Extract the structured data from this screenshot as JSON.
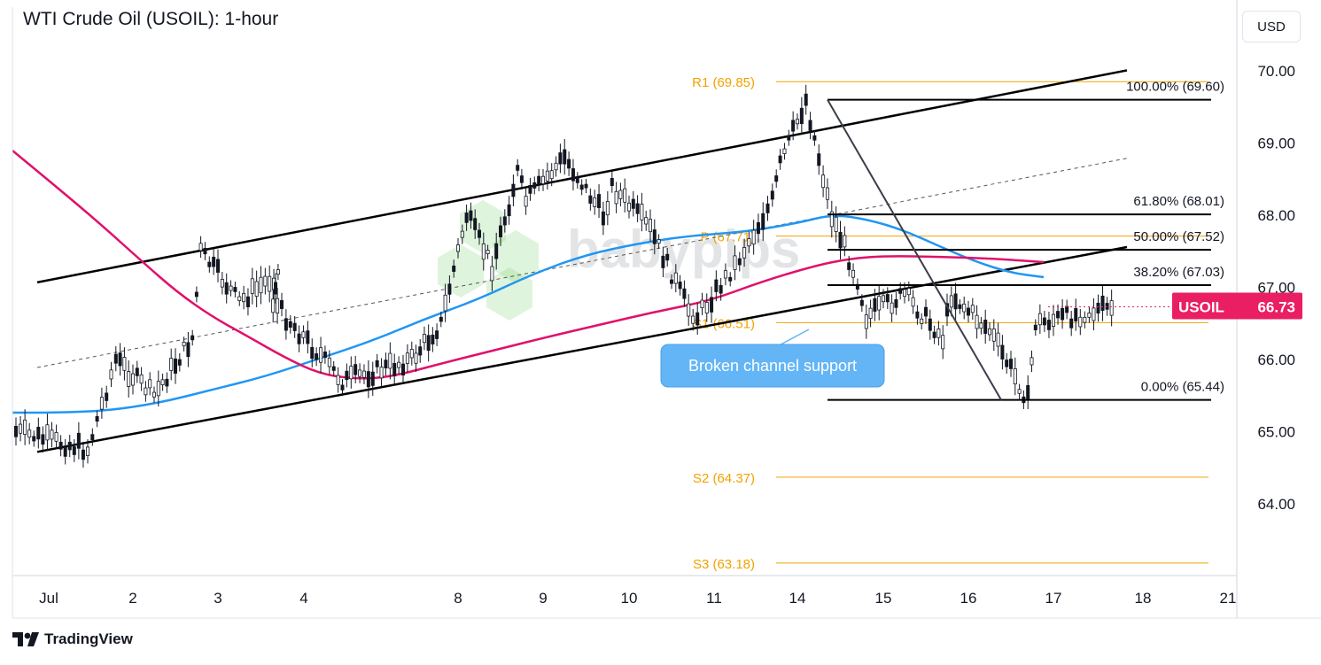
{
  "header": {
    "title": "WTI Crude Oil (USOIL): 1-hour",
    "currency": "USD"
  },
  "footer": {
    "brand": "TradingView"
  },
  "watermark": "babypips",
  "colors": {
    "price_tag": "#e91e63",
    "sma100": "#2196f3",
    "sma200": "#e0116a",
    "pivot": "#f2a200",
    "line": "#000000",
    "callout": "#64b5f6",
    "watermark": "#6ccb5f"
  },
  "chart_data": {
    "type": "candlestick",
    "symbol": "USOIL",
    "current_price": "66.73",
    "y_axis": {
      "ticks": [
        "70.00",
        "69.00",
        "68.00",
        "67.00",
        "66.00",
        "65.00",
        "64.00"
      ],
      "range": [
        62.4,
        70.3
      ]
    },
    "x_axis": {
      "ticks": [
        "Jul",
        "2",
        "3",
        "4",
        "8",
        "9",
        "10",
        "11",
        "14",
        "15",
        "16",
        "17",
        "18",
        "21"
      ]
    },
    "pivots": [
      {
        "label": "R1 (69.85)",
        "value": 69.85
      },
      {
        "label": "P (67.71)",
        "value": 67.71
      },
      {
        "label": "S1 (66.51)",
        "value": 66.51
      },
      {
        "label": "S2 (64.37)",
        "value": 64.37
      },
      {
        "label": "S3 (63.18)",
        "value": 63.18
      }
    ],
    "fibonacci": [
      {
        "label": "100.00% (69.60)",
        "value": 69.6
      },
      {
        "label": "61.80% (68.01)",
        "value": 68.01
      },
      {
        "label": "50.00% (67.52)",
        "value": 67.52
      },
      {
        "label": "38.20% (67.03)",
        "value": 67.03
      },
      {
        "label": "0.00% (65.44)",
        "value": 65.44
      }
    ],
    "annotations": [
      {
        "text": "Broken channel support"
      }
    ],
    "channel": {
      "upper": [
        [
          "Jul",
          67.1
        ],
        [
          "18",
          70.05
        ]
      ],
      "lower": [
        [
          "Jul",
          64.75
        ],
        [
          "18",
          67.6
        ]
      ],
      "mid": [
        [
          "Jul",
          65.92
        ],
        [
          "18",
          68.83
        ]
      ]
    },
    "price_path": [
      [
        "Jul",
        65.0
      ],
      [
        "Jul",
        64.75
      ],
      [
        "2",
        66.0
      ],
      [
        "2",
        65.5
      ],
      [
        "2",
        66.3
      ],
      [
        "3",
        67.5
      ],
      [
        "3",
        66.8
      ],
      [
        "3",
        67.2
      ],
      [
        "4",
        66.8
      ],
      [
        "4",
        65.7
      ],
      [
        "4",
        66.0
      ],
      [
        "8",
        66.5
      ],
      [
        "8",
        68.0
      ],
      [
        "8",
        67.3
      ],
      [
        "8",
        68.6
      ],
      [
        "9",
        68.2
      ],
      [
        "9",
        68.8
      ],
      [
        "9",
        68.0
      ],
      [
        "10",
        68.4
      ],
      [
        "10",
        67.8
      ],
      [
        "10",
        66.7
      ],
      [
        "11",
        66.6
      ],
      [
        "11",
        67.3
      ],
      [
        "11",
        68.2
      ],
      [
        "14",
        68.7
      ],
      [
        "14",
        69.6
      ],
      [
        "14",
        68.0
      ],
      [
        "14",
        67.1
      ],
      [
        "15",
        66.6
      ],
      [
        "15",
        66.9
      ],
      [
        "15",
        66.3
      ],
      [
        "16",
        66.9
      ],
      [
        "16",
        66.4
      ],
      [
        "16",
        65.44
      ],
      [
        "17",
        66.5
      ],
      [
        "17",
        66.73
      ]
    ]
  }
}
